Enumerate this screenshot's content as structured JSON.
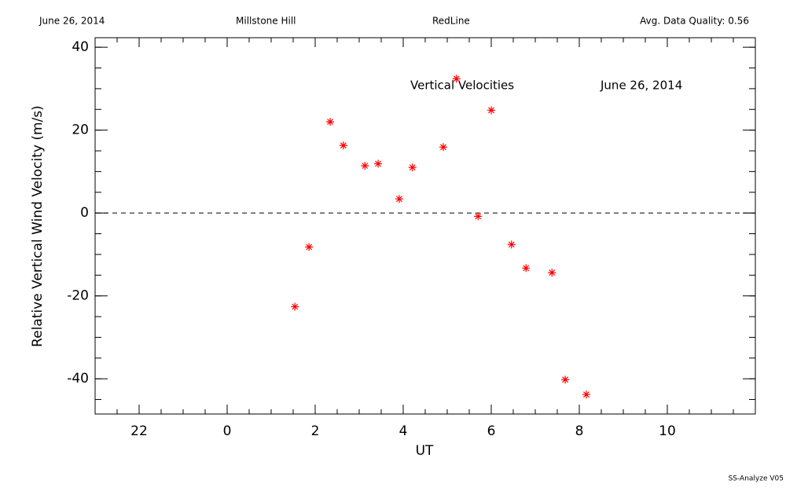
{
  "chart_data": {
    "type": "scatter",
    "header": [
      "June 26, 2014",
      "Millstone Hill",
      "RedLine",
      "Avg. Data Quality: 0.56"
    ],
    "annotations": [
      "Vertical Velocities",
      "June 26, 2014"
    ],
    "footer": "SS-Analyze V05",
    "x_label": "UT",
    "y_label": "Relative Vertical Wind Velocity (m/s)",
    "x": [
      1.54,
      1.86,
      2.34,
      2.64,
      3.13,
      3.43,
      3.91,
      4.21,
      4.91,
      5.21,
      5.7,
      6.0,
      6.46,
      6.79,
      7.38,
      7.68,
      8.16
    ],
    "values": [
      -22.6,
      -8.2,
      22.0,
      16.3,
      11.4,
      11.9,
      3.4,
      11.0,
      15.9,
      32.4,
      -0.8,
      24.8,
      -7.6,
      -13.3,
      -14.4,
      -40.2,
      -43.8
    ],
    "color": "#ff0000",
    "xlim": [
      -3,
      12
    ],
    "xticks": [
      {
        "value": -2,
        "label": "22"
      },
      0,
      2,
      4,
      6,
      8,
      10
    ],
    "ylim": [
      -48.5,
      42.3
    ],
    "yticks": [
      -40,
      -20,
      0,
      20,
      40
    ],
    "x_minor_step": 0.5,
    "y_minor_step": 5,
    "reference_line": 0
  }
}
